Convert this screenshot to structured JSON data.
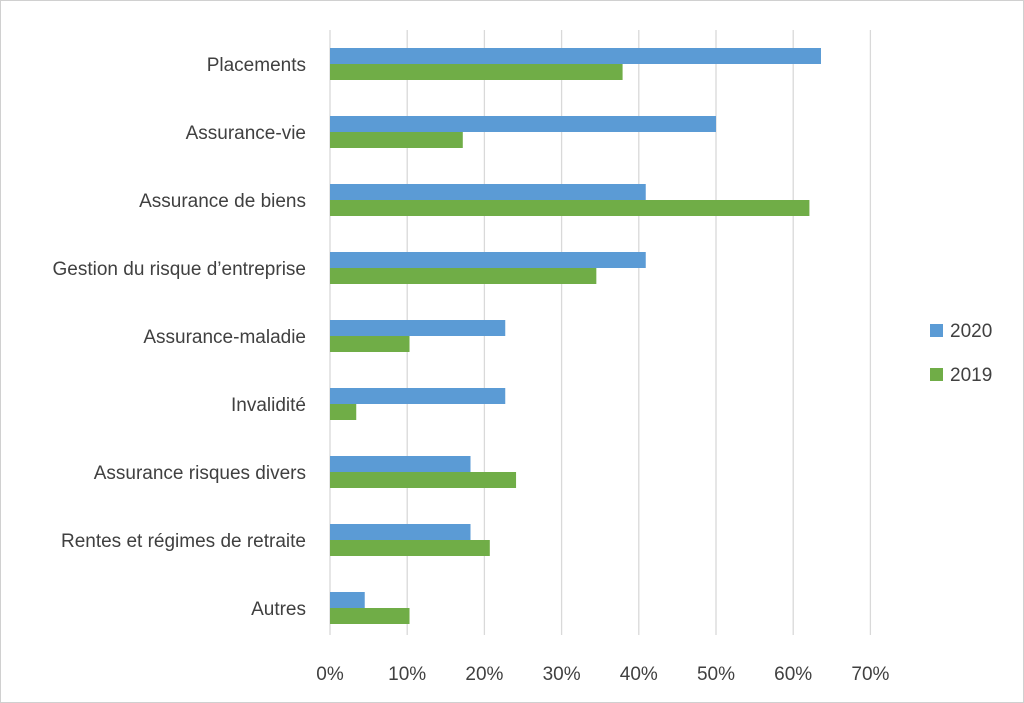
{
  "chart_data": {
    "type": "bar",
    "orientation": "horizontal",
    "categories": [
      "Placements",
      "Assurance-vie",
      "Assurance de biens",
      "Gestion du risque d’entreprise",
      "Assurance-maladie",
      "Invalidité",
      "Assurance risques divers",
      "Rentes et régimes de retraite",
      "Autres"
    ],
    "series": [
      {
        "name": "2020",
        "color": "#5B9BD5",
        "values": [
          63.6,
          50.0,
          40.9,
          40.9,
          22.7,
          22.7,
          18.2,
          18.2,
          4.5
        ]
      },
      {
        "name": "2019",
        "color": "#70AD47",
        "values": [
          37.9,
          17.2,
          62.1,
          34.5,
          10.3,
          3.4,
          24.1,
          20.7,
          10.3
        ]
      }
    ],
    "xlim": [
      0,
      70
    ],
    "xticks": [
      "0%",
      "10%",
      "20%",
      "30%",
      "40%",
      "50%",
      "60%",
      "70%"
    ],
    "grid": true,
    "legend_position": "right"
  }
}
